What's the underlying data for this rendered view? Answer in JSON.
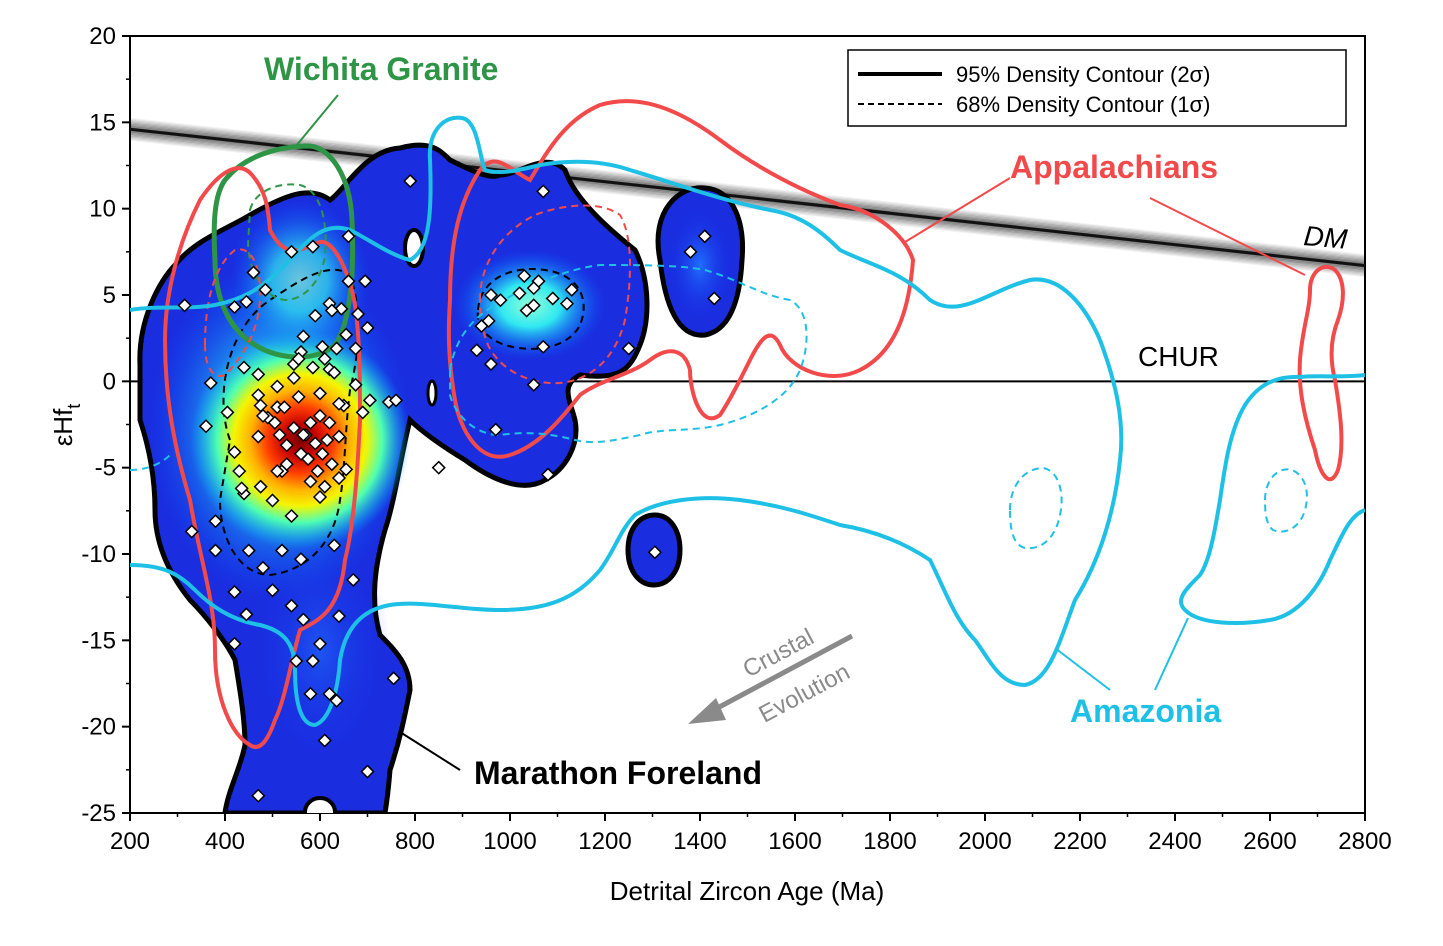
{
  "chart_data": {
    "type": "scatter",
    "xlabel": "Detrital Zircon Age (Ma)",
    "ylabel_base": "εHf",
    "ylabel_sub": "t",
    "xlim": [
      200,
      2800
    ],
    "ylim": [
      -25,
      20
    ],
    "x_ticks": [
      200,
      400,
      600,
      800,
      1000,
      1200,
      1400,
      1600,
      1800,
      2000,
      2200,
      2400,
      2600,
      2800
    ],
    "y_ticks": [
      20,
      15,
      10,
      5,
      0,
      -5,
      -10,
      -15,
      -20,
      -25
    ],
    "legend": {
      "position": "top-right",
      "entries": [
        {
          "label": "95% Density Contour (2σ)",
          "style": "solid"
        },
        {
          "label": "68% Density Contour (1σ)",
          "style": "dashed"
        }
      ]
    },
    "reference_lines": {
      "dm": {
        "label": "DM",
        "x": [
          200,
          2800
        ],
        "y": [
          14.6,
          6.7
        ]
      },
      "chur": {
        "label": "CHUR",
        "y": 0
      }
    },
    "annotations": {
      "wichita": "Wichita Granite",
      "appalachians": "Appalachians",
      "amazonia": "Amazonia",
      "marathon": "Marathon Foreland",
      "crustal_1": "Crustal",
      "crustal_2": "Evolution"
    },
    "series": [
      {
        "name": "Marathon Foreland",
        "color": "#000000",
        "points": [
          [
            315,
            4.4
          ],
          [
            330,
            -8.7
          ],
          [
            380,
            -8.1
          ],
          [
            370,
            -0.1
          ],
          [
            360,
            -2.6
          ],
          [
            405,
            -1.8
          ],
          [
            420,
            -4.1
          ],
          [
            430,
            -5.2
          ],
          [
            450,
            -9.8
          ],
          [
            420,
            -12.2
          ],
          [
            440,
            -6.5
          ],
          [
            470,
            -3.2
          ],
          [
            490,
            -2.1
          ],
          [
            510,
            -1.5
          ],
          [
            530,
            -3.7
          ],
          [
            545,
            -2.7
          ],
          [
            560,
            -4.2
          ],
          [
            570,
            -3.1
          ],
          [
            590,
            -3.6
          ],
          [
            605,
            -4.2
          ],
          [
            615,
            -3.4
          ],
          [
            625,
            -4.8
          ],
          [
            640,
            -3.2
          ],
          [
            655,
            -5.1
          ],
          [
            580,
            -5.8
          ],
          [
            600,
            -6.7
          ],
          [
            520,
            -5.2
          ],
          [
            500,
            -6.9
          ],
          [
            475,
            -6.1
          ],
          [
            540,
            -7.8
          ],
          [
            560,
            -10.3
          ],
          [
            520,
            -9.8
          ],
          [
            480,
            -10.8
          ],
          [
            500,
            -12.1
          ],
          [
            445,
            -13.5
          ],
          [
            475,
            -1.4
          ],
          [
            545,
            1.0
          ],
          [
            560,
            1.7
          ],
          [
            585,
            0.8
          ],
          [
            610,
            1.3
          ],
          [
            635,
            1.9
          ],
          [
            655,
            2.7
          ],
          [
            675,
            1.9
          ],
          [
            700,
            3.1
          ],
          [
            675,
            -0.2
          ],
          [
            705,
            -1.1
          ],
          [
            745,
            -1.2
          ],
          [
            650,
            -1.4
          ],
          [
            600,
            -0.7
          ],
          [
            555,
            -0.9
          ],
          [
            510,
            -0.3
          ],
          [
            470,
            0.4
          ],
          [
            440,
            0.8
          ],
          [
            445,
            4.6
          ],
          [
            460,
            6.3
          ],
          [
            485,
            5.3
          ],
          [
            420,
            4.3
          ],
          [
            565,
            2.6
          ],
          [
            590,
            3.8
          ],
          [
            620,
            4.5
          ],
          [
            645,
            4.2
          ],
          [
            660,
            5.8
          ],
          [
            680,
            3.9
          ],
          [
            695,
            5.8
          ],
          [
            660,
            8.4
          ],
          [
            585,
            7.8
          ],
          [
            540,
            7.5
          ],
          [
            565,
            -13.8
          ],
          [
            600,
            -15.2
          ],
          [
            620,
            -18.1
          ],
          [
            610,
            -20.8
          ],
          [
            640,
            -13.6
          ],
          [
            670,
            -11.5
          ],
          [
            700,
            -22.6
          ],
          [
            755,
            -17.2
          ],
          [
            585,
            -16.2
          ],
          [
            550,
            -16.2
          ],
          [
            470,
            -24.0
          ],
          [
            435,
            -6.2
          ],
          [
            555,
            1.3
          ],
          [
            620,
            0.7
          ],
          [
            640,
            -5.6
          ],
          [
            565,
            -3.1
          ],
          [
            530,
            -4.8
          ],
          [
            510,
            -5.2
          ],
          [
            525,
            -1.5
          ],
          [
            470,
            -0.8
          ],
          [
            630,
            0.5
          ],
          [
            630,
            -9.5
          ],
          [
            420,
            -15.2
          ],
          [
            380,
            -9.8
          ],
          [
            540,
            -13.0
          ],
          [
            580,
            -18.1
          ],
          [
            635,
            -18.5
          ],
          [
            760,
            -1.1
          ],
          [
            690,
            -1.8
          ],
          [
            640,
            -1.3
          ],
          [
            625,
            4.1
          ],
          [
            480,
            -2.0
          ],
          [
            505,
            -2.4
          ],
          [
            515,
            -3.1
          ],
          [
            575,
            -4.5
          ],
          [
            595,
            -5.2
          ],
          [
            610,
            -6.1
          ],
          [
            545,
            0.2
          ],
          [
            605,
            2.0
          ],
          [
            580,
            -2.4
          ],
          [
            600,
            -2.0
          ],
          [
            620,
            -2.4
          ],
          [
            790,
            11.6
          ],
          [
            955,
            3.5
          ],
          [
            930,
            1.8
          ],
          [
            980,
            4.7
          ],
          [
            940,
            3.2
          ],
          [
            960,
            5.0
          ],
          [
            1020,
            5.1
          ],
          [
            1035,
            4.1
          ],
          [
            1050,
            4.4
          ],
          [
            1060,
            5.8
          ],
          [
            1070,
            2.0
          ],
          [
            1090,
            4.8
          ],
          [
            1120,
            4.5
          ],
          [
            1130,
            5.3
          ],
          [
            1050,
            -0.2
          ],
          [
            970,
            -2.8
          ],
          [
            1080,
            -5.4
          ],
          [
            1070,
            11.0
          ],
          [
            1030,
            6.1
          ],
          [
            960,
            1.0
          ],
          [
            850,
            -5.0
          ],
          [
            1250,
            1.9
          ],
          [
            1380,
            7.5
          ],
          [
            1410,
            8.4
          ],
          [
            1430,
            4.8
          ],
          [
            1305,
            -9.9
          ],
          [
            1050,
            5.4
          ]
        ]
      }
    ]
  }
}
